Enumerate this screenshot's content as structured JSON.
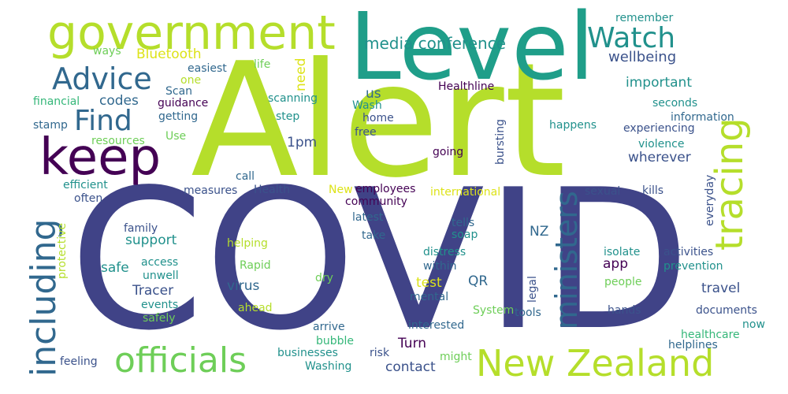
{
  "palette": {
    "dark_purple": "#440154",
    "indigo": "#3b528b",
    "navy": "#404387",
    "blue": "#31688e",
    "teal": "#21918c",
    "teal_green": "#1f9e89",
    "green": "#35b779",
    "light_green": "#6ece58",
    "lime": "#b5de2b",
    "yellow": "#dde318"
  },
  "words": [
    {
      "text": "COVID",
      "color": "navy"
    },
    {
      "text": "Alert",
      "color": "lime"
    },
    {
      "text": "Level",
      "color": "teal_green"
    },
    {
      "text": "government",
      "color": "lime"
    },
    {
      "text": "keep",
      "color": "dark_purple"
    },
    {
      "text": "tracing",
      "color": "lime"
    },
    {
      "text": "including",
      "color": "blue"
    },
    {
      "text": "officials",
      "color": "light_green"
    },
    {
      "text": "New Zealand",
      "color": "lime"
    },
    {
      "text": "ministers",
      "color": "blue"
    },
    {
      "text": "Advice",
      "color": "blue"
    },
    {
      "text": "Find",
      "color": "blue"
    },
    {
      "text": "Watch",
      "color": "teal"
    },
    {
      "text": "media conference",
      "color": "teal"
    },
    {
      "text": "wellbeing",
      "color": "indigo"
    },
    {
      "text": "Bluetooth",
      "color": "yellow"
    },
    {
      "text": "important",
      "color": "teal"
    },
    {
      "text": "remember",
      "color": "teal"
    },
    {
      "text": "ways",
      "color": "light_green"
    },
    {
      "text": "life",
      "color": "light_green"
    },
    {
      "text": "need",
      "color": "yellow"
    },
    {
      "text": "easiest",
      "color": "blue"
    },
    {
      "text": "one",
      "color": "lime"
    },
    {
      "text": "Scan",
      "color": "blue"
    },
    {
      "text": "financial",
      "color": "green"
    },
    {
      "text": "codes",
      "color": "blue"
    },
    {
      "text": "guidance",
      "color": "dark_purple"
    },
    {
      "text": "getting",
      "color": "blue"
    },
    {
      "text": "scanning",
      "color": "teal"
    },
    {
      "text": "Healthline",
      "color": "dark_purple"
    },
    {
      "text": "us",
      "color": "blue"
    },
    {
      "text": "Wash",
      "color": "teal"
    },
    {
      "text": "step",
      "color": "teal"
    },
    {
      "text": "home",
      "color": "indigo"
    },
    {
      "text": "seconds",
      "color": "teal"
    },
    {
      "text": "information",
      "color": "blue"
    },
    {
      "text": "stamp",
      "color": "blue"
    },
    {
      "text": "resources",
      "color": "light_green"
    },
    {
      "text": "Use",
      "color": "light_green"
    },
    {
      "text": "1pm",
      "color": "indigo"
    },
    {
      "text": "free",
      "color": "indigo"
    },
    {
      "text": "happens",
      "color": "teal"
    },
    {
      "text": "experiencing",
      "color": "indigo"
    },
    {
      "text": "going",
      "color": "dark_purple"
    },
    {
      "text": "bursting",
      "color": "indigo"
    },
    {
      "text": "violence",
      "color": "teal"
    },
    {
      "text": "wherever",
      "color": "indigo"
    },
    {
      "text": "efficient",
      "color": "teal"
    },
    {
      "text": "call",
      "color": "blue"
    },
    {
      "text": "often",
      "color": "indigo"
    },
    {
      "text": "measures",
      "color": "indigo"
    },
    {
      "text": "Health",
      "color": "indigo"
    },
    {
      "text": "New",
      "color": "yellow"
    },
    {
      "text": "employees",
      "color": "dark_purple"
    },
    {
      "text": "international",
      "color": "yellow"
    },
    {
      "text": "community",
      "color": "dark_purple"
    },
    {
      "text": "sexual",
      "color": "indigo"
    },
    {
      "text": "kills",
      "color": "indigo"
    },
    {
      "text": "everyday",
      "color": "indigo"
    },
    {
      "text": "family",
      "color": "indigo"
    },
    {
      "text": "latest",
      "color": "blue"
    },
    {
      "text": "tells",
      "color": "blue"
    },
    {
      "text": "support",
      "color": "teal"
    },
    {
      "text": "soap",
      "color": "teal"
    },
    {
      "text": "NZ",
      "color": "blue"
    },
    {
      "text": "take",
      "color": "blue"
    },
    {
      "text": "helping",
      "color": "lime"
    },
    {
      "text": "safe",
      "color": "teal"
    },
    {
      "text": "Rapid",
      "color": "light_green"
    },
    {
      "text": "protective",
      "color": "lime"
    },
    {
      "text": "access",
      "color": "teal"
    },
    {
      "text": "unwell",
      "color": "teal"
    },
    {
      "text": "dry",
      "color": "light_green"
    },
    {
      "text": "distress",
      "color": "teal"
    },
    {
      "text": "within",
      "color": "blue"
    },
    {
      "text": "test",
      "color": "yellow"
    },
    {
      "text": "QR",
      "color": "blue"
    },
    {
      "text": "app",
      "color": "dark_purple"
    },
    {
      "text": "legal",
      "color": "indigo"
    },
    {
      "text": "isolate",
      "color": "teal"
    },
    {
      "text": "activities",
      "color": "indigo"
    },
    {
      "text": "prevention",
      "color": "teal"
    },
    {
      "text": "people",
      "color": "light_green"
    },
    {
      "text": "Tracer",
      "color": "indigo"
    },
    {
      "text": "virus",
      "color": "blue"
    },
    {
      "text": "travel",
      "color": "indigo"
    },
    {
      "text": "events",
      "color": "teal"
    },
    {
      "text": "ahead",
      "color": "lime"
    },
    {
      "text": "safely",
      "color": "light_green"
    },
    {
      "text": "mental",
      "color": "blue"
    },
    {
      "text": "System",
      "color": "light_green"
    },
    {
      "text": "tools",
      "color": "blue"
    },
    {
      "text": "hands",
      "color": "indigo"
    },
    {
      "text": "documents",
      "color": "indigo"
    },
    {
      "text": "now",
      "color": "teal"
    },
    {
      "text": "arrive",
      "color": "blue"
    },
    {
      "text": "interested",
      "color": "blue"
    },
    {
      "text": "healthcare",
      "color": "green"
    },
    {
      "text": "helplines",
      "color": "blue"
    },
    {
      "text": "bubble",
      "color": "green"
    },
    {
      "text": "risk",
      "color": "indigo"
    },
    {
      "text": "Turn",
      "color": "dark_purple"
    },
    {
      "text": "businesses",
      "color": "teal"
    },
    {
      "text": "contact",
      "color": "indigo"
    },
    {
      "text": "feeling",
      "color": "indigo"
    },
    {
      "text": "Washing",
      "color": "teal"
    },
    {
      "text": "might",
      "color": "light_green"
    }
  ]
}
